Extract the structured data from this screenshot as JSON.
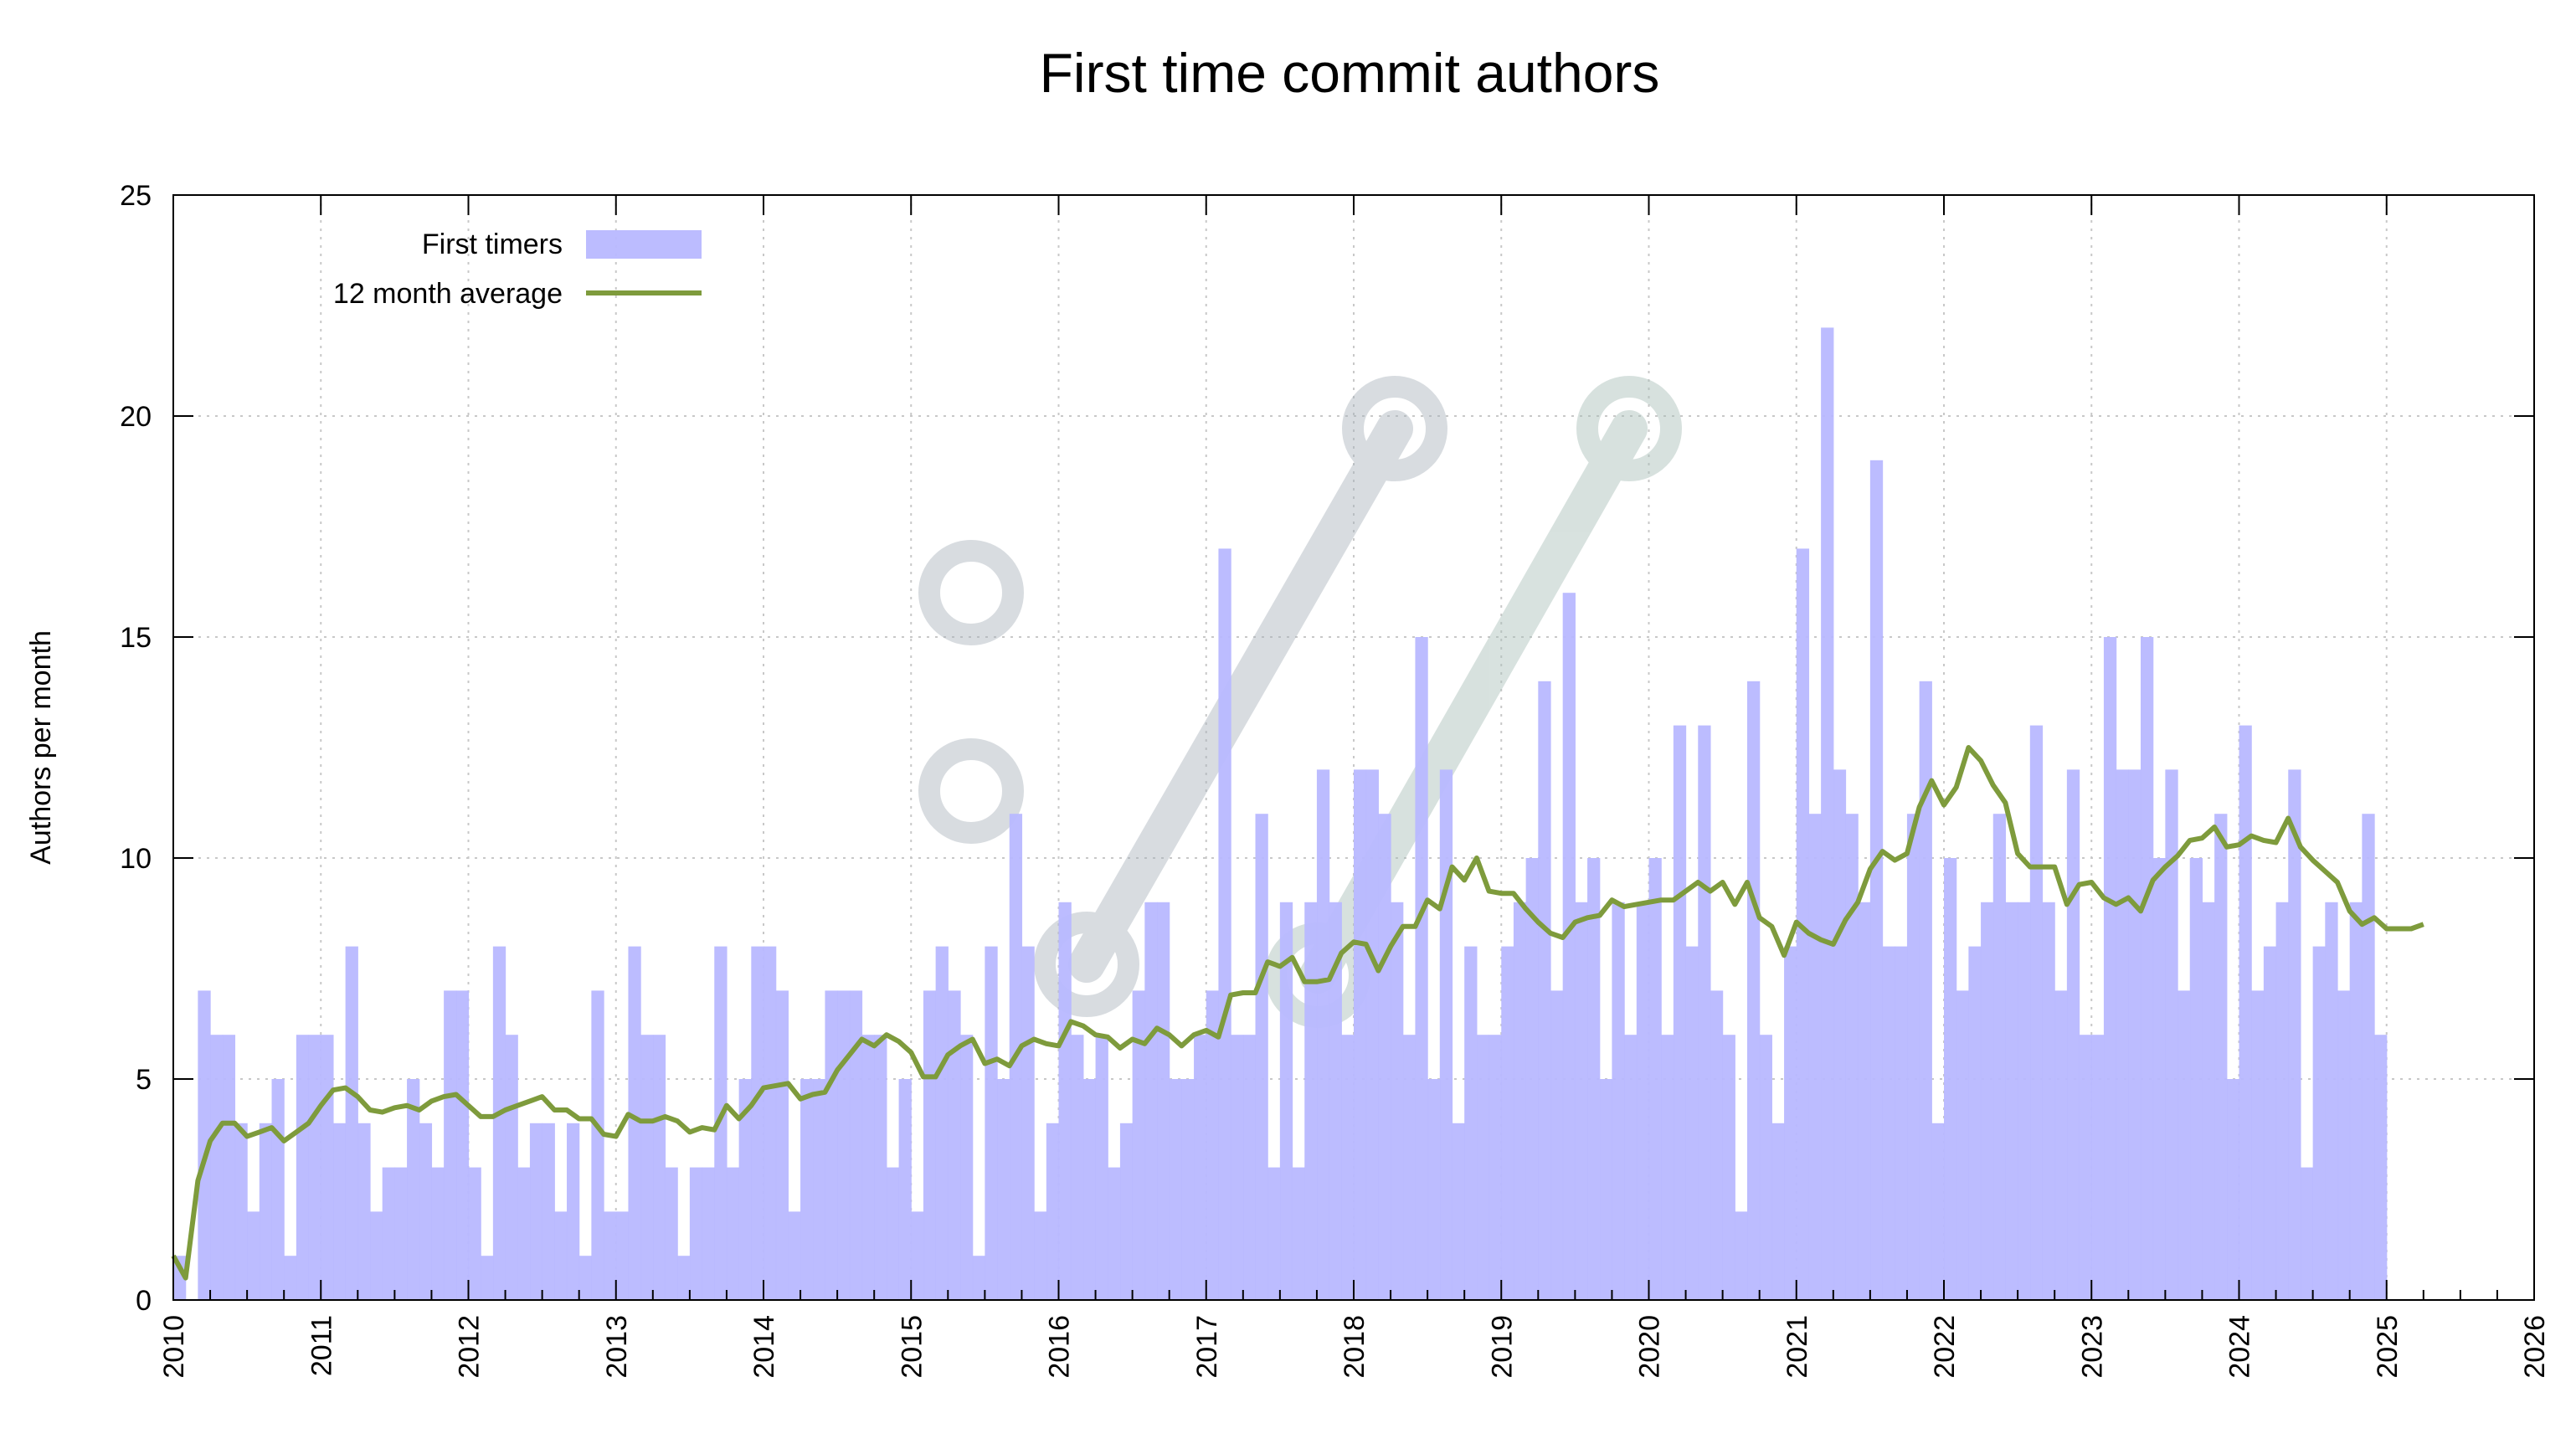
{
  "chart_data": {
    "type": "bar",
    "title": "First time commit authors",
    "ylabel": "Authors per month",
    "xlabel": "",
    "xlim": [
      2010,
      2026
    ],
    "ylim": [
      0,
      25
    ],
    "yticks": [
      0,
      5,
      10,
      15,
      20,
      25
    ],
    "xticks": [
      "2010",
      "2011",
      "2012",
      "2013",
      "2014",
      "2015",
      "2016",
      "2017",
      "2018",
      "2019",
      "2020",
      "2021",
      "2022",
      "2023",
      "2024",
      "2025",
      "2026"
    ],
    "grid": true,
    "legend_position": "top-left",
    "start_month": "2010-01",
    "series": [
      {
        "name": "First timers",
        "kind": "bar",
        "color": "#b8b8ff",
        "values": [
          1,
          0,
          7,
          6,
          6,
          4,
          2,
          4,
          5,
          1,
          6,
          6,
          6,
          4,
          8,
          4,
          2,
          3,
          3,
          5,
          4,
          3,
          7,
          7,
          3,
          1,
          8,
          6,
          3,
          4,
          4,
          2,
          4,
          1,
          7,
          2,
          2,
          8,
          6,
          6,
          3,
          1,
          3,
          3,
          8,
          3,
          5,
          8,
          8,
          7,
          2,
          5,
          5,
          7,
          7,
          7,
          6,
          6,
          3,
          5,
          2,
          7,
          8,
          7,
          6,
          1,
          8,
          5,
          11,
          8,
          2,
          4,
          9,
          6,
          5,
          6,
          3,
          4,
          7,
          9,
          9,
          5,
          5,
          6,
          7,
          17,
          6,
          6,
          11,
          3,
          9,
          3,
          9,
          12,
          9,
          6,
          12,
          12,
          11,
          9,
          6,
          15,
          5,
          12,
          4,
          8,
          6,
          6,
          8,
          9,
          10,
          14,
          7,
          16,
          9,
          10,
          5,
          9,
          6,
          9,
          10,
          6,
          13,
          8,
          13,
          7,
          6,
          2,
          14,
          6,
          4,
          8,
          17,
          11,
          22,
          12,
          11,
          9,
          19,
          8,
          8,
          11,
          14,
          4,
          10,
          7,
          8,
          9,
          11,
          9,
          9,
          13,
          9,
          7,
          12,
          6,
          6,
          15,
          12,
          12,
          15,
          10,
          12,
          7,
          10,
          9,
          11,
          5,
          13,
          7,
          8,
          9,
          12,
          3,
          8,
          9,
          7,
          9,
          11,
          6
        ]
      },
      {
        "name": "12 month average",
        "kind": "line",
        "color": "#7e9b3c",
        "values": [
          1.0,
          0.5,
          2.7,
          3.6,
          4.0,
          4.0,
          3.7,
          3.8,
          3.9,
          3.6,
          3.8,
          4.0,
          4.4,
          4.75,
          4.8,
          4.6,
          4.3,
          4.25,
          4.35,
          4.4,
          4.3,
          4.5,
          4.6,
          4.65,
          4.4,
          4.15,
          4.15,
          4.3,
          4.4,
          4.5,
          4.6,
          4.3,
          4.3,
          4.1,
          4.1,
          3.75,
          3.7,
          4.2,
          4.05,
          4.05,
          4.15,
          4.05,
          3.8,
          3.9,
          3.85,
          4.4,
          4.1,
          4.4,
          4.8,
          4.85,
          4.9,
          4.55,
          4.65,
          4.7,
          5.2,
          5.55,
          5.9,
          5.75,
          6.0,
          5.85,
          5.6,
          5.05,
          5.05,
          5.55,
          5.75,
          5.9,
          5.35,
          5.45,
          5.3,
          5.75,
          5.9,
          5.8,
          5.75,
          6.3,
          6.2,
          6.0,
          5.95,
          5.7,
          5.9,
          5.8,
          6.15,
          6.0,
          5.75,
          6.0,
          6.1,
          5.95,
          6.9,
          6.95,
          6.95,
          7.65,
          7.55,
          7.75,
          7.2,
          7.2,
          7.25,
          7.85,
          8.1,
          8.05,
          7.45,
          8.0,
          8.45,
          8.45,
          9.05,
          8.85,
          9.8,
          9.5,
          10.0,
          9.25,
          9.2,
          9.2,
          8.85,
          8.55,
          8.3,
          8.2,
          8.55,
          8.65,
          8.7,
          9.05,
          8.9,
          8.95,
          9.0,
          9.05,
          9.05,
          9.25,
          9.45,
          9.25,
          9.45,
          8.95,
          9.45,
          8.65,
          8.45,
          7.8,
          8.55,
          8.3,
          8.15,
          8.05,
          8.6,
          9.0,
          9.75,
          10.15,
          9.95,
          10.1,
          11.15,
          11.75,
          11.2,
          11.6,
          12.5,
          12.2,
          11.65,
          11.25,
          10.1,
          9.8,
          9.8,
          9.8,
          8.95,
          9.4,
          9.45,
          9.1,
          8.95,
          9.1,
          8.8,
          9.5,
          9.8,
          10.05,
          10.4,
          10.45,
          10.7,
          10.25,
          10.3,
          10.5,
          10.4,
          10.35,
          10.9,
          10.25,
          9.95,
          9.7,
          9.45,
          8.8,
          8.5,
          8.65,
          8.4,
          8.4,
          8.4,
          8.5
        ]
      }
    ]
  }
}
